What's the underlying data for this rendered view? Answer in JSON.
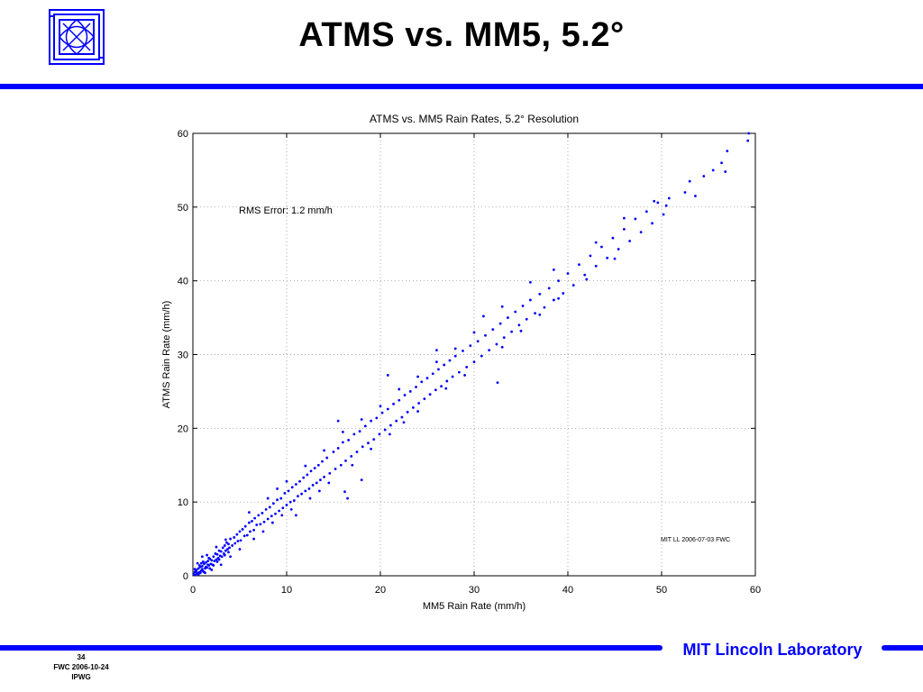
{
  "slide": {
    "title": "ATMS vs. MM5, 5.2°",
    "footer_page": "34",
    "footer_date": "FWC 2006-10-24",
    "footer_event": "IPWG",
    "lab_name": "MIT Lincoln Laboratory"
  },
  "colors": {
    "accent": "#0000ff",
    "points": "#0000ff"
  },
  "chart_data": {
    "type": "scatter",
    "title": "ATMS vs. MM5 Rain Rates, 5.2° Resolution",
    "xlabel": "MM5 Rain Rate (mm/h)",
    "ylabel": "ATMS Rain Rate (mm/h)",
    "xlim": [
      0,
      60
    ],
    "ylim": [
      0,
      60
    ],
    "xticks": [
      0,
      10,
      20,
      30,
      40,
      50,
      60
    ],
    "yticks": [
      0,
      10,
      20,
      30,
      40,
      50,
      60
    ],
    "grid": true,
    "annotations": [
      "RMS Error: 1.2 mm/h",
      "MIT LL 2006-07-03 FWC"
    ],
    "points": [
      [
        0.1,
        0.2
      ],
      [
        0.2,
        0.5
      ],
      [
        0.3,
        0.1
      ],
      [
        0.4,
        0.8
      ],
      [
        0.5,
        0.4
      ],
      [
        0.6,
        1.0
      ],
      [
        0.7,
        0.5
      ],
      [
        0.8,
        1.2
      ],
      [
        0.9,
        0.7
      ],
      [
        1.0,
        1.3
      ],
      [
        1.1,
        0.6
      ],
      [
        1.2,
        1.6
      ],
      [
        1.3,
        1.0
      ],
      [
        1.4,
        1.8
      ],
      [
        1.5,
        1.1
      ],
      [
        1.6,
        2.0
      ],
      [
        1.7,
        1.4
      ],
      [
        1.8,
        2.3
      ],
      [
        1.9,
        1.6
      ],
      [
        2.0,
        2.1
      ],
      [
        2.1,
        1.5
      ],
      [
        2.2,
        2.6
      ],
      [
        2.3,
        2.0
      ],
      [
        2.4,
        3.0
      ],
      [
        2.5,
        2.2
      ],
      [
        2.6,
        2.9
      ],
      [
        2.7,
        2.4
      ],
      [
        2.8,
        3.4
      ],
      [
        2.9,
        2.7
      ],
      [
        3.0,
        3.3
      ],
      [
        3.1,
        2.6
      ],
      [
        3.2,
        3.8
      ],
      [
        3.3,
        3.0
      ],
      [
        3.4,
        4.1
      ],
      [
        3.5,
        3.4
      ],
      [
        3.6,
        4.5
      ],
      [
        3.7,
        3.6
      ],
      [
        3.8,
        4.3
      ],
      [
        3.9,
        3.8
      ],
      [
        4.0,
        5.0
      ],
      [
        4.2,
        4.1
      ],
      [
        4.4,
        5.2
      ],
      [
        4.5,
        4.4
      ],
      [
        4.7,
        5.6
      ],
      [
        4.8,
        4.7
      ],
      [
        5.0,
        6.0
      ],
      [
        5.1,
        4.8
      ],
      [
        5.3,
        6.3
      ],
      [
        5.5,
        5.4
      ],
      [
        5.6,
        6.7
      ],
      [
        5.8,
        5.5
      ],
      [
        6.0,
        7.2
      ],
      [
        6.1,
        6.0
      ],
      [
        6.3,
        7.4
      ],
      [
        6.5,
        6.2
      ],
      [
        6.6,
        7.8
      ],
      [
        6.8,
        6.9
      ],
      [
        7.0,
        8.2
      ],
      [
        7.2,
        7.0
      ],
      [
        7.4,
        8.5
      ],
      [
        7.6,
        7.3
      ],
      [
        7.8,
        9.0
      ],
      [
        8.0,
        7.7
      ],
      [
        8.2,
        9.3
      ],
      [
        8.4,
        8.1
      ],
      [
        8.6,
        9.8
      ],
      [
        8.8,
        8.4
      ],
      [
        9.0,
        10.3
      ],
      [
        9.2,
        8.8
      ],
      [
        9.4,
        10.5
      ],
      [
        9.6,
        9.2
      ],
      [
        9.8,
        11.2
      ],
      [
        10.0,
        9.6
      ],
      [
        10.2,
        11.5
      ],
      [
        10.4,
        10.0
      ],
      [
        10.6,
        12.0
      ],
      [
        10.8,
        10.2
      ],
      [
        11.0,
        12.4
      ],
      [
        11.2,
        10.8
      ],
      [
        11.4,
        12.8
      ],
      [
        11.6,
        11.1
      ],
      [
        11.8,
        13.3
      ],
      [
        12.0,
        11.5
      ],
      [
        12.2,
        13.7
      ],
      [
        12.4,
        11.8
      ],
      [
        12.6,
        14.2
      ],
      [
        12.8,
        12.3
      ],
      [
        13.0,
        14.6
      ],
      [
        13.2,
        12.6
      ],
      [
        13.4,
        15.0
      ],
      [
        13.6,
        13.0
      ],
      [
        13.8,
        15.5
      ],
      [
        14.0,
        13.4
      ],
      [
        14.3,
        16.0
      ],
      [
        14.6,
        13.9
      ],
      [
        15.0,
        16.8
      ],
      [
        15.2,
        14.5
      ],
      [
        15.5,
        17.3
      ],
      [
        15.8,
        15.0
      ],
      [
        16.0,
        18.1
      ],
      [
        16.3,
        15.6
      ],
      [
        16.6,
        18.4
      ],
      [
        16.9,
        16.2
      ],
      [
        17.2,
        19.2
      ],
      [
        17.5,
        16.8
      ],
      [
        17.8,
        19.6
      ],
      [
        18.1,
        17.5
      ],
      [
        18.4,
        20.3
      ],
      [
        18.7,
        18.0
      ],
      [
        19.0,
        21.0
      ],
      [
        19.3,
        18.5
      ],
      [
        19.6,
        21.4
      ],
      [
        19.9,
        19.2
      ],
      [
        20.2,
        22.1
      ],
      [
        20.5,
        19.8
      ],
      [
        20.8,
        22.6
      ],
      [
        21.1,
        20.4
      ],
      [
        21.4,
        23.3
      ],
      [
        21.7,
        21.0
      ],
      [
        22.0,
        23.8
      ],
      [
        22.3,
        21.5
      ],
      [
        22.6,
        24.5
      ],
      [
        22.9,
        22.2
      ],
      [
        23.2,
        25.0
      ],
      [
        23.5,
        22.8
      ],
      [
        23.8,
        25.6
      ],
      [
        24.1,
        23.4
      ],
      [
        24.4,
        26.3
      ],
      [
        24.7,
        24.0
      ],
      [
        25.0,
        26.8
      ],
      [
        25.3,
        24.6
      ],
      [
        25.6,
        27.4
      ],
      [
        25.9,
        25.2
      ],
      [
        26.2,
        28.0
      ],
      [
        26.5,
        25.7
      ],
      [
        26.8,
        28.6
      ],
      [
        27.1,
        26.4
      ],
      [
        27.4,
        29.2
      ],
      [
        27.7,
        27.0
      ],
      [
        28.0,
        29.8
      ],
      [
        28.4,
        27.6
      ],
      [
        28.8,
        30.5
      ],
      [
        29.2,
        28.3
      ],
      [
        29.6,
        31.2
      ],
      [
        30.0,
        29.0
      ],
      [
        30.4,
        31.8
      ],
      [
        30.8,
        29.8
      ],
      [
        31.2,
        32.6
      ],
      [
        31.6,
        30.6
      ],
      [
        32.0,
        33.4
      ],
      [
        32.4,
        31.4
      ],
      [
        32.8,
        34.2
      ],
      [
        33.2,
        32.3
      ],
      [
        33.6,
        35.0
      ],
      [
        34.0,
        33.1
      ],
      [
        34.4,
        35.8
      ],
      [
        34.8,
        34.0
      ],
      [
        35.2,
        36.6
      ],
      [
        35.6,
        34.8
      ],
      [
        36.0,
        37.4
      ],
      [
        36.5,
        35.6
      ],
      [
        37.0,
        38.2
      ],
      [
        37.5,
        36.4
      ],
      [
        38.0,
        39.0
      ],
      [
        38.5,
        37.4
      ],
      [
        39.0,
        40.0
      ],
      [
        39.5,
        38.3
      ],
      [
        40.0,
        41.0
      ],
      [
        40.6,
        39.4
      ],
      [
        41.2,
        42.2
      ],
      [
        41.8,
        40.8
      ],
      [
        42.4,
        43.4
      ],
      [
        43.0,
        42.0
      ],
      [
        43.6,
        44.6
      ],
      [
        44.2,
        43.1
      ],
      [
        44.8,
        45.8
      ],
      [
        45.4,
        44.3
      ],
      [
        46.0,
        47.0
      ],
      [
        46.6,
        45.4
      ],
      [
        47.2,
        48.4
      ],
      [
        47.8,
        46.6
      ],
      [
        48.4,
        49.4
      ],
      [
        49.0,
        47.8
      ],
      [
        49.6,
        50.6
      ],
      [
        50.2,
        49.0
      ],
      [
        50.8,
        51.2
      ],
      [
        52.5,
        52.0
      ],
      [
        53.0,
        53.5
      ],
      [
        53.6,
        51.5
      ],
      [
        54.5,
        54.2
      ],
      [
        55.5,
        55.0
      ],
      [
        56.4,
        56.0
      ],
      [
        57.0,
        57.6
      ],
      [
        56.8,
        54.8
      ],
      [
        59.2,
        59.0
      ],
      [
        59.3,
        60.0
      ],
      [
        32.5,
        26.2
      ],
      [
        16.2,
        11.4
      ],
      [
        16.5,
        10.5
      ],
      [
        20.8,
        27.2
      ],
      [
        26.0,
        30.6
      ],
      [
        31.0,
        35.2
      ],
      [
        15.5,
        21.0
      ],
      [
        9.0,
        11.8
      ],
      [
        11.0,
        8.2
      ],
      [
        18.0,
        13.0
      ],
      [
        3.0,
        1.5
      ],
      [
        1.0,
        2.6
      ],
      [
        2.0,
        0.8
      ],
      [
        4.0,
        2.6
      ],
      [
        5.0,
        3.6
      ],
      [
        0.5,
        1.7
      ],
      [
        1.5,
        2.8
      ],
      [
        2.5,
        3.9
      ],
      [
        3.5,
        4.9
      ],
      [
        6.5,
        5.0
      ],
      [
        7.5,
        6.0
      ],
      [
        8.5,
        7.2
      ],
      [
        9.5,
        8.2
      ],
      [
        10.5,
        9.0
      ],
      [
        12.5,
        10.5
      ],
      [
        13.5,
        11.5
      ],
      [
        14.5,
        12.6
      ],
      [
        17.0,
        15.0
      ],
      [
        19.0,
        17.2
      ],
      [
        21.0,
        19.2
      ],
      [
        22.5,
        20.8
      ],
      [
        24.0,
        22.3
      ],
      [
        27.0,
        25.4
      ],
      [
        29.0,
        27.2
      ],
      [
        33.0,
        31.0
      ],
      [
        35.0,
        33.2
      ],
      [
        37.0,
        35.4
      ],
      [
        39.0,
        37.6
      ],
      [
        42.0,
        40.2
      ],
      [
        45.0,
        43.0
      ],
      [
        6.0,
        8.6
      ],
      [
        8.0,
        10.5
      ],
      [
        10.0,
        12.8
      ],
      [
        12.0,
        14.9
      ],
      [
        14.0,
        17.0
      ],
      [
        16.0,
        19.5
      ],
      [
        18.0,
        21.2
      ],
      [
        20.0,
        23.0
      ],
      [
        22.0,
        25.3
      ],
      [
        24.0,
        27.0
      ],
      [
        26.0,
        29.0
      ],
      [
        28.0,
        30.8
      ],
      [
        30.0,
        33.0
      ],
      [
        33.0,
        36.5
      ],
      [
        36.0,
        39.8
      ],
      [
        38.5,
        41.5
      ],
      [
        43.0,
        45.2
      ],
      [
        46.0,
        48.5
      ],
      [
        49.2,
        50.8
      ],
      [
        50.5,
        50.2
      ],
      [
        0.2,
        0.9
      ],
      [
        0.4,
        0.3
      ],
      [
        0.6,
        0.2
      ],
      [
        0.8,
        0.4
      ],
      [
        1.0,
        0.9
      ],
      [
        1.2,
        0.5
      ],
      [
        1.4,
        1.2
      ],
      [
        1.6,
        1.5
      ],
      [
        1.8,
        1.0
      ],
      [
        0.3,
        0.6
      ],
      [
        0.7,
        1.4
      ],
      [
        1.1,
        1.9
      ],
      [
        1.3,
        0.4
      ],
      [
        1.7,
        2.4
      ],
      [
        0.9,
        1.7
      ],
      [
        2.2,
        1.4
      ],
      [
        2.6,
        1.9
      ],
      [
        2.8,
        2.2
      ],
      [
        3.4,
        2.8
      ],
      [
        3.8,
        3.2
      ]
    ]
  }
}
